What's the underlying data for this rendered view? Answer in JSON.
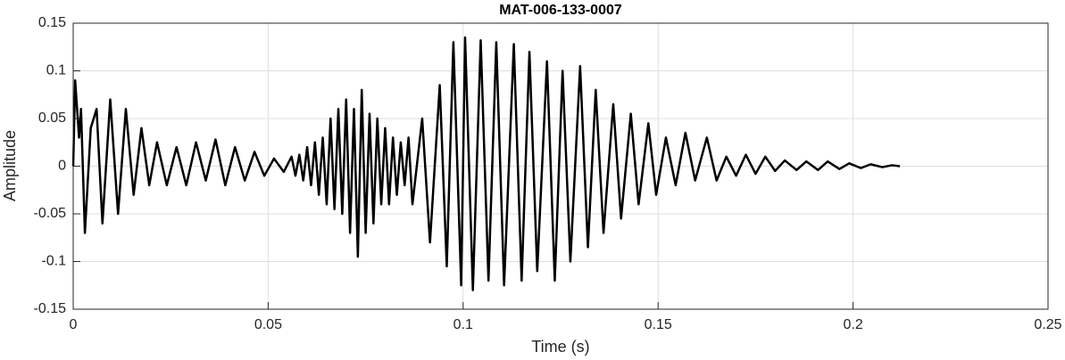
{
  "chart_data": {
    "type": "line",
    "title": "MAT-006-133-0007",
    "x_label": "Time (s)",
    "y_label": "Amplitude",
    "xlim": [
      0,
      0.25
    ],
    "xticks": [
      0,
      0.05,
      0.1,
      0.15,
      0.2,
      0.25
    ],
    "ylim": [
      -0.15,
      0.15
    ],
    "yticks": [
      -0.15,
      -0.1,
      -0.05,
      0,
      0.05,
      0.1,
      0.15
    ],
    "grid": true,
    "x": [
      0,
      0.0005,
      0.0015,
      0.002,
      0.003,
      0.0045,
      0.006,
      0.0075,
      0.0095,
      0.0115,
      0.0135,
      0.0155,
      0.0175,
      0.0195,
      0.0215,
      0.024,
      0.0265,
      0.029,
      0.0315,
      0.034,
      0.0365,
      0.039,
      0.0415,
      0.044,
      0.0465,
      0.049,
      0.0515,
      0.054,
      0.056,
      0.057,
      0.058,
      0.059,
      0.06,
      0.061,
      0.062,
      0.063,
      0.064,
      0.065,
      0.066,
      0.067,
      0.068,
      0.069,
      0.07,
      0.071,
      0.072,
      0.073,
      0.074,
      0.075,
      0.076,
      0.077,
      0.078,
      0.079,
      0.08,
      0.081,
      0.082,
      0.083,
      0.084,
      0.085,
      0.086,
      0.087,
      0.0895,
      0.0915,
      0.094,
      0.0958,
      0.0975,
      0.0995,
      0.1005,
      0.1025,
      0.1045,
      0.1065,
      0.1085,
      0.1105,
      0.113,
      0.115,
      0.117,
      0.119,
      0.1215,
      0.1235,
      0.1255,
      0.1275,
      0.13,
      0.132,
      0.134,
      0.136,
      0.1385,
      0.1405,
      0.143,
      0.145,
      0.1475,
      0.1495,
      0.152,
      0.1545,
      0.157,
      0.1595,
      0.1625,
      0.165,
      0.1675,
      0.17,
      0.1725,
      0.175,
      0.1775,
      0.18,
      0.1825,
      0.1855,
      0.188,
      0.191,
      0.1935,
      0.1965,
      0.199,
      0.202,
      0.2045,
      0.2075,
      0.21,
      0.212
    ],
    "series": [
      {
        "color": "#000000",
        "values": [
          0,
          0.09,
          0.03,
          0.06,
          -0.07,
          0.04,
          0.06,
          -0.06,
          0.07,
          -0.05,
          0.06,
          -0.03,
          0.04,
          -0.02,
          0.025,
          -0.02,
          0.02,
          -0.02,
          0.025,
          -0.015,
          0.028,
          -0.02,
          0.02,
          -0.015,
          0.015,
          -0.01,
          0.008,
          -0.006,
          0.01,
          -0.01,
          0.012,
          -0.015,
          0.02,
          -0.02,
          0.025,
          -0.03,
          0.03,
          -0.04,
          0.05,
          -0.045,
          0.06,
          -0.05,
          0.07,
          -0.07,
          0.06,
          -0.095,
          0.08,
          -0.07,
          0.055,
          -0.06,
          0.05,
          -0.04,
          0.04,
          -0.04,
          0.03,
          -0.03,
          0.025,
          -0.02,
          0.03,
          -0.04,
          0.05,
          -0.08,
          0.085,
          -0.105,
          0.13,
          -0.125,
          0.135,
          -0.13,
          0.132,
          -0.12,
          0.13,
          -0.125,
          0.128,
          -0.12,
          0.12,
          -0.11,
          0.11,
          -0.12,
          0.1,
          -0.1,
          0.105,
          -0.085,
          0.08,
          -0.07,
          0.065,
          -0.055,
          0.055,
          -0.04,
          0.045,
          -0.03,
          0.03,
          -0.02,
          0.035,
          -0.015,
          0.03,
          -0.015,
          0.01,
          -0.01,
          0.012,
          -0.008,
          0.01,
          -0.005,
          0.006,
          -0.004,
          0.005,
          -0.004,
          0.005,
          -0.003,
          0.003,
          -0.002,
          0.002,
          -0.001,
          0.001,
          0
        ]
      }
    ]
  }
}
